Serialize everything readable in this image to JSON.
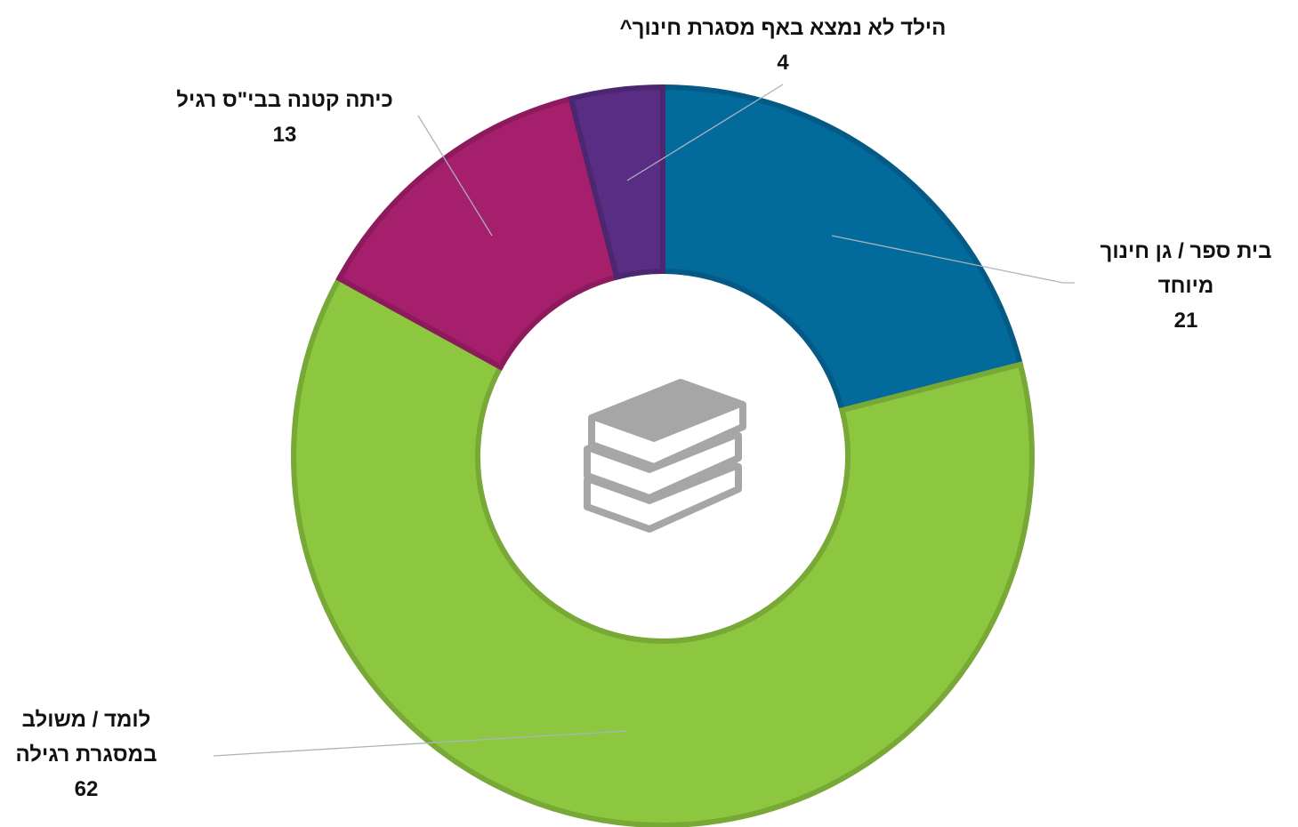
{
  "chart_data": {
    "type": "donut",
    "categories": [
      "בית ספר / גן חינוך מיוחד",
      "לומד / משולב במסגרת רגילה",
      "כיתה קטנה בבי\"ס רגיל",
      "הילד לא נמצא באף מסגרת חינוך^"
    ],
    "values": [
      21,
      62,
      13,
      4
    ],
    "colors": [
      "#036a9c",
      "#8dc63f",
      "#a61f6d",
      "#5a2d84"
    ]
  }
}
